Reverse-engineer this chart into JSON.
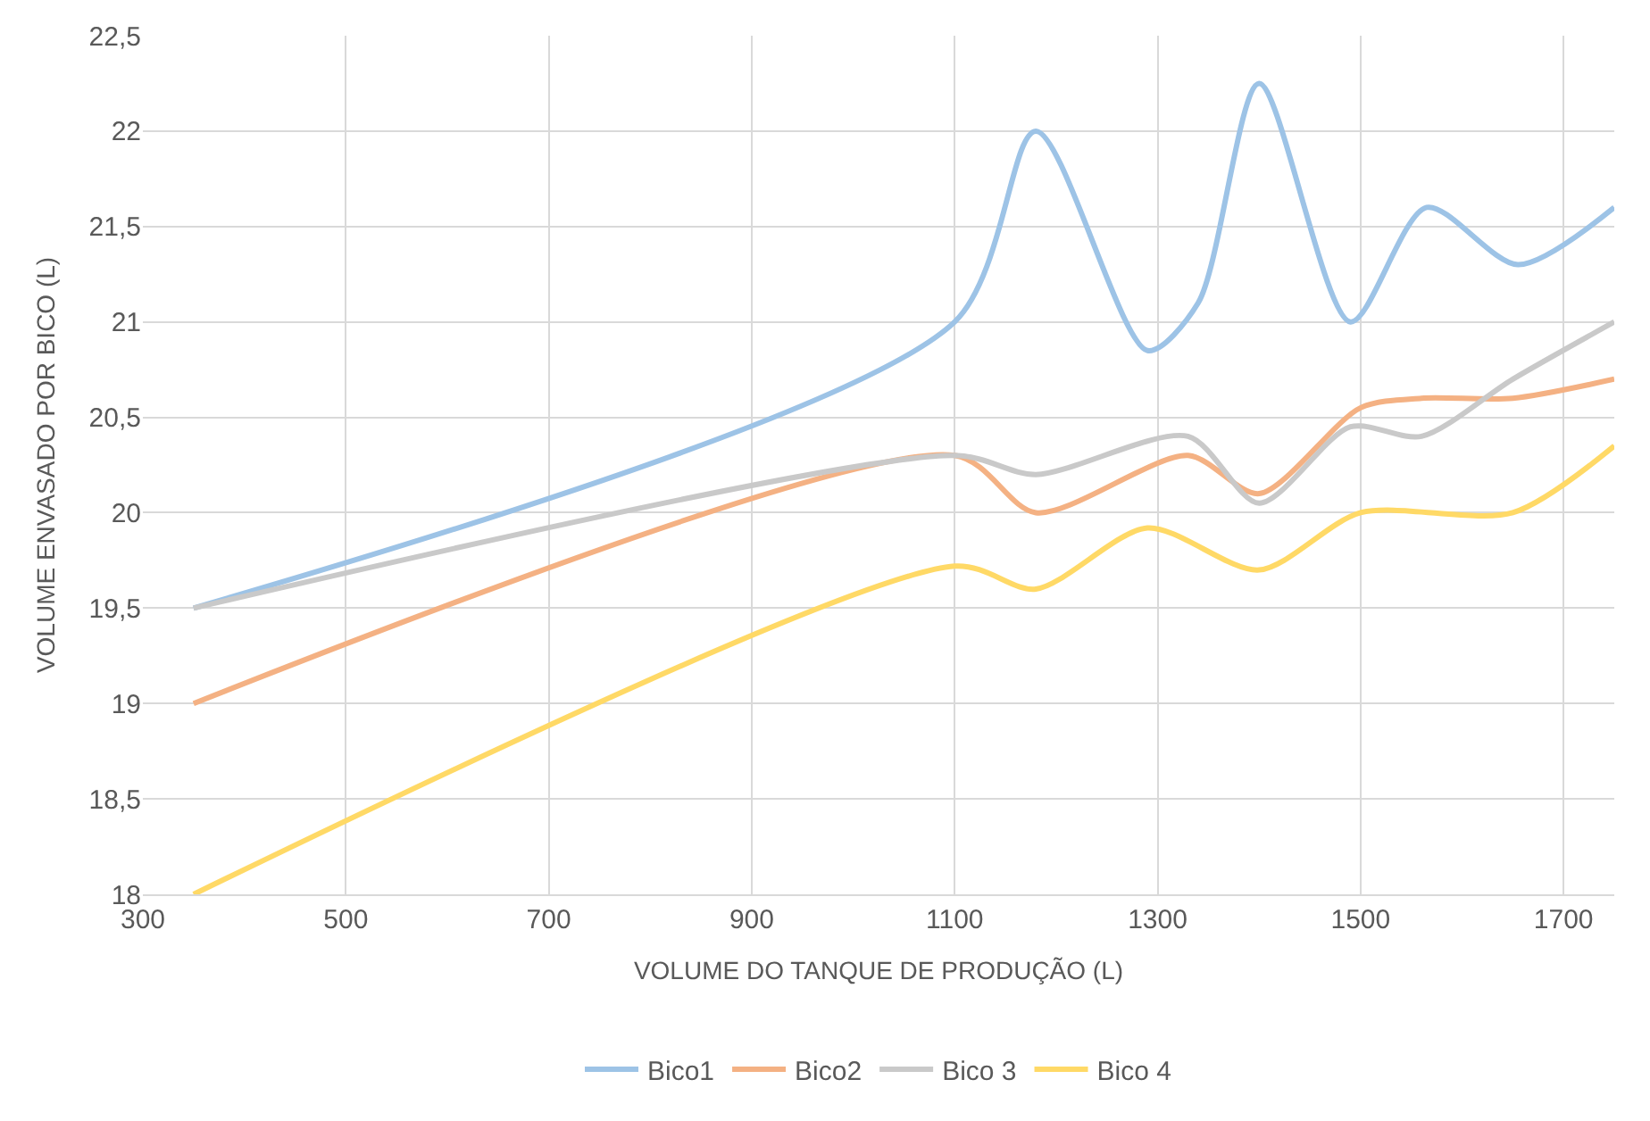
{
  "chart_data": {
    "type": "line",
    "xlabel": "VOLUME DO TANQUE DE PRODUÇÃO (L)",
    "ylabel": "VOLUME ENVASADO POR BICO (L)",
    "xlim": [
      300,
      1750
    ],
    "xticks": [
      300,
      500,
      700,
      900,
      1100,
      1300,
      1500,
      1700
    ],
    "ylim": [
      18,
      22.5
    ],
    "yticks": [
      {
        "value": 18,
        "label": "18"
      },
      {
        "value": 18.5,
        "label": "18,5"
      },
      {
        "value": 19,
        "label": "19"
      },
      {
        "value": 19.5,
        "label": "19,5"
      },
      {
        "value": 20,
        "label": "20"
      },
      {
        "value": 20.5,
        "label": "20,5"
      },
      {
        "value": 21,
        "label": "21"
      },
      {
        "value": 21.5,
        "label": "21,5"
      },
      {
        "value": 22,
        "label": "22"
      },
      {
        "value": 22.5,
        "label": "22,5"
      }
    ],
    "grid": true,
    "legend": "bottom",
    "marker": "none",
    "line_style": "solid",
    "series": [
      {
        "name": "Bico1",
        "color": "#9dc3e6",
        "x": [
          350,
          1100,
          1180,
          1290,
          1340,
          1400,
          1490,
          1565,
          1655,
          1750
        ],
        "values": [
          19.5,
          21,
          22,
          20.85,
          21.1,
          22.25,
          21,
          21.6,
          21.3,
          21.6
        ]
      },
      {
        "name": "Bico2",
        "color": "#f4b183",
        "x": [
          350,
          1100,
          1180,
          1330,
          1400,
          1500,
          1560,
          1650,
          1750
        ],
        "values": [
          19,
          20.3,
          20,
          20.3,
          20.1,
          20.55,
          20.6,
          20.6,
          20.7
        ]
      },
      {
        "name": "Bico 3",
        "color": "#c9c9c9",
        "x": [
          350,
          1100,
          1180,
          1330,
          1400,
          1490,
          1560,
          1650,
          1750
        ],
        "values": [
          19.5,
          20.3,
          20.2,
          20.4,
          20.05,
          20.45,
          20.4,
          20.7,
          21
        ]
      },
      {
        "name": "Bico 4",
        "color": "#ffd966",
        "x": [
          350,
          1100,
          1180,
          1290,
          1400,
          1500,
          1650,
          1750
        ],
        "values": [
          18,
          19.72,
          19.6,
          19.92,
          19.7,
          20,
          20,
          20.35
        ]
      }
    ]
  }
}
